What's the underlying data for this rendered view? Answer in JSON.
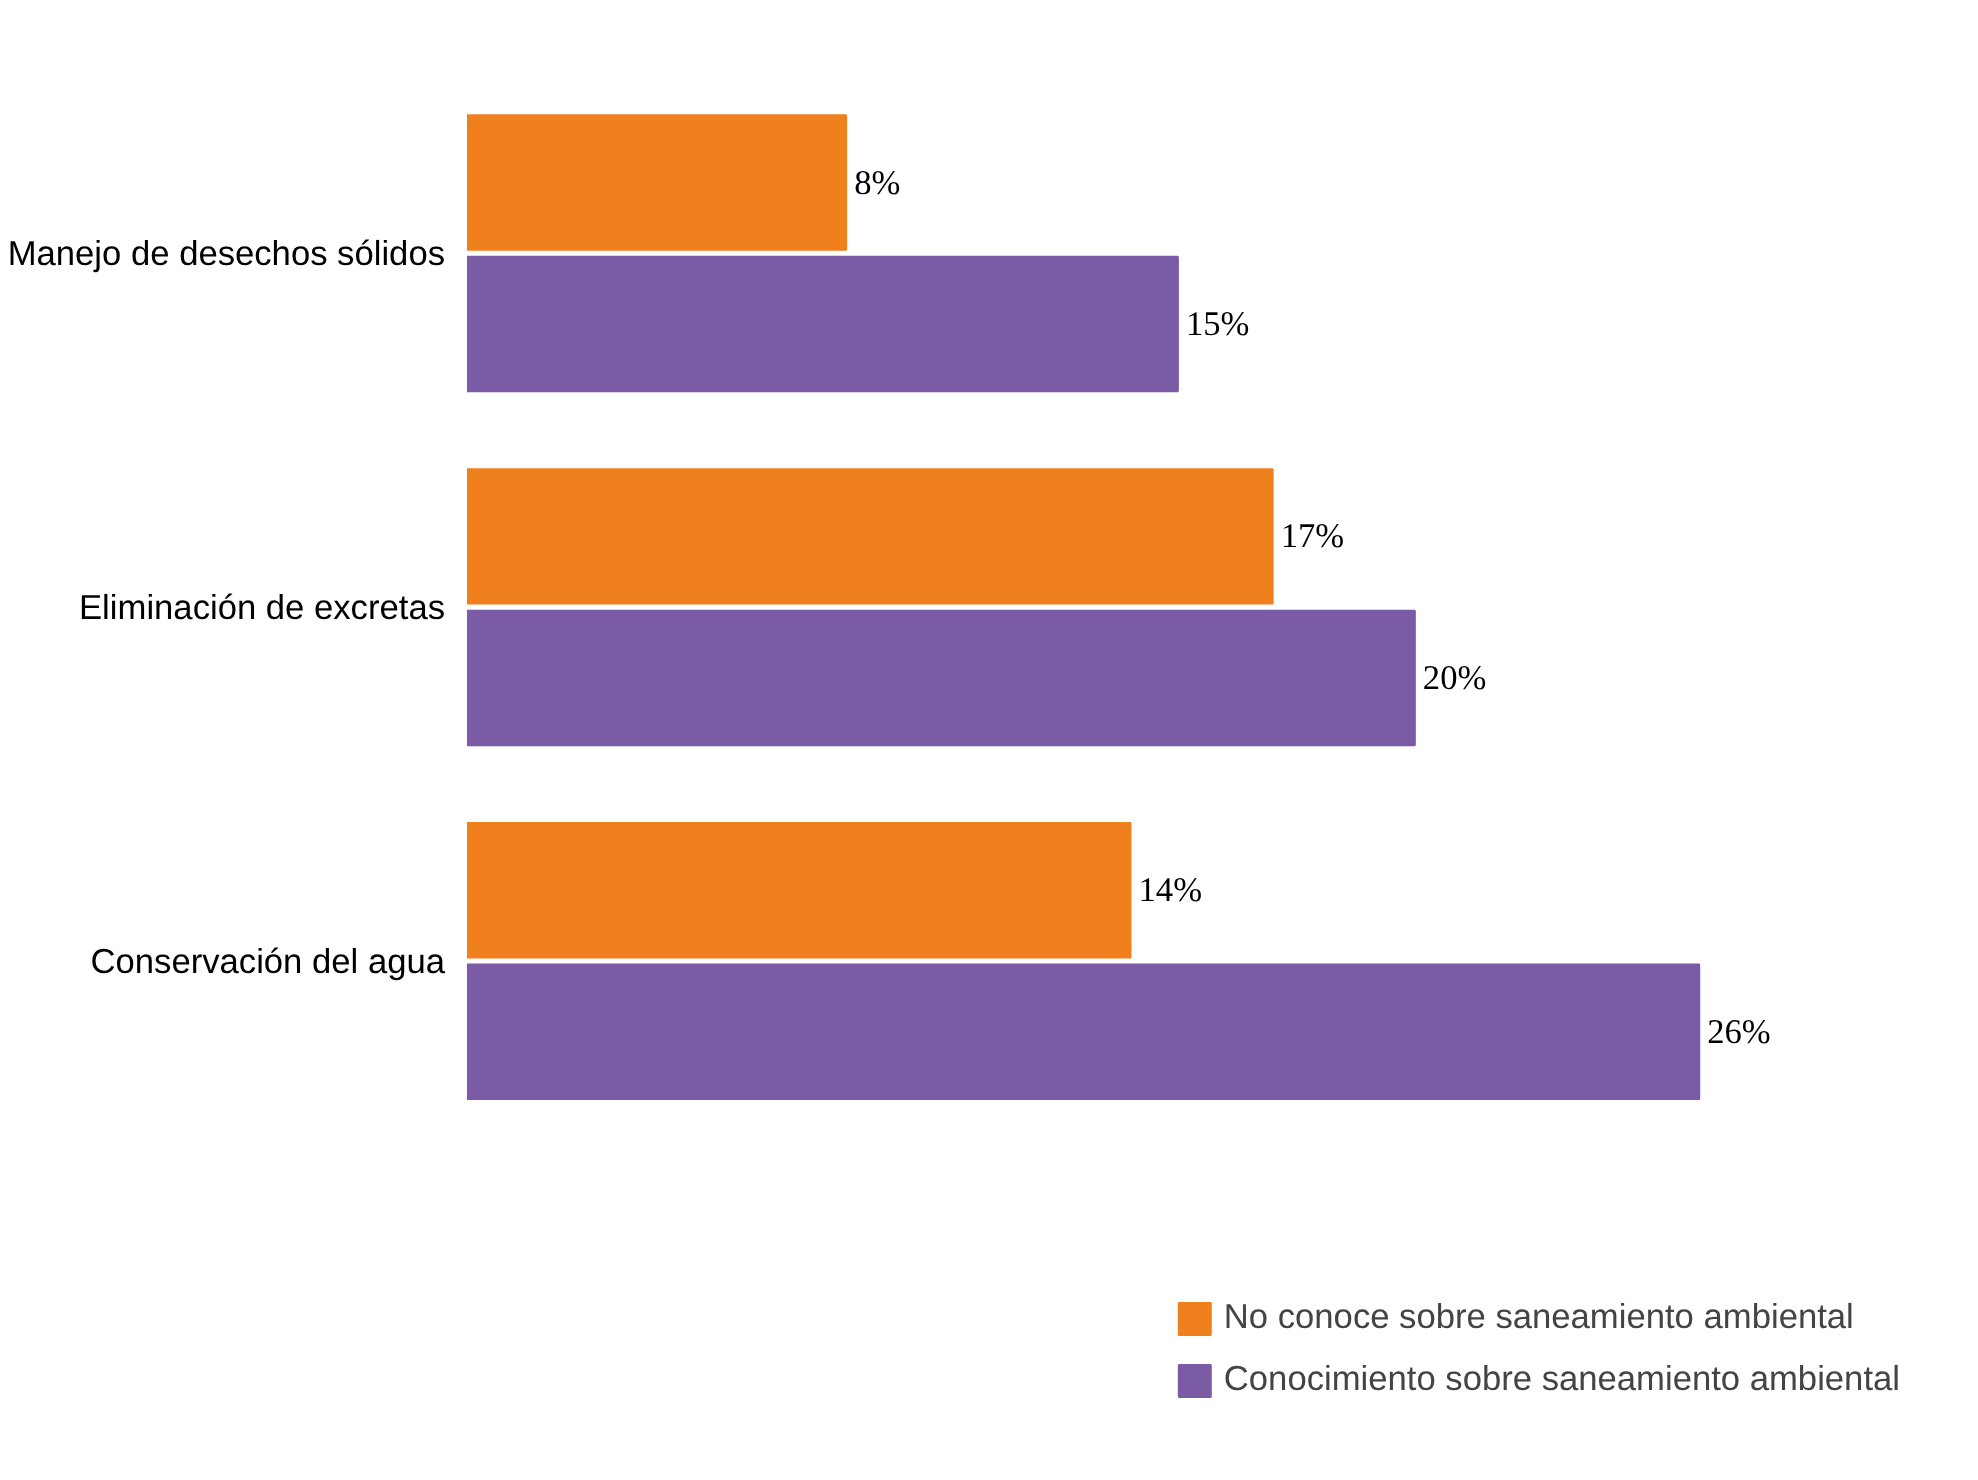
{
  "chart_data": {
    "type": "bar",
    "orientation": "horizontal",
    "categories": [
      "Manejo de desechos sólidos",
      "Eliminación de excretas",
      "Conservación del agua"
    ],
    "series": [
      {
        "name": "No conoce sobre saneamiento ambiental",
        "color": "#f07f1e",
        "values": [
          8,
          17,
          14
        ],
        "value_labels": [
          "8%",
          "17%",
          "14%"
        ]
      },
      {
        "name": "Conocimiento sobre saneamiento ambiental",
        "color": "#7b5aa6",
        "values": [
          15,
          20,
          26
        ],
        "value_labels": [
          "15%",
          "20%",
          "26%"
        ]
      }
    ],
    "legend": "bottom right",
    "tick_labels": "y"
  }
}
